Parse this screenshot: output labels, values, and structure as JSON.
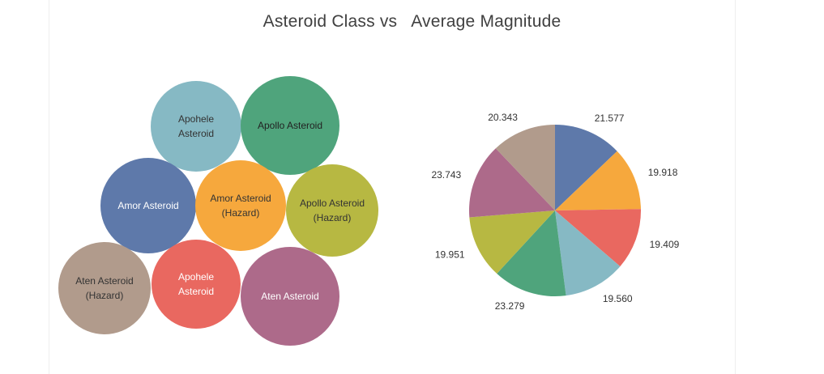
{
  "title": "Asteroid Class vs   Average Magnitude",
  "chart_data": [
    {
      "type": "bubble",
      "items": [
        {
          "label_lines": [
            "Apohele",
            "Asteroid"
          ],
          "color": "#86b9c4",
          "text_color": "#333333"
        },
        {
          "label_lines": [
            "Apollo Asteroid"
          ],
          "color": "#4fa47c",
          "text_color": "#222222"
        },
        {
          "label_lines": [
            "Amor Asteroid"
          ],
          "color": "#5e79aa",
          "text_color": "#ffffff"
        },
        {
          "label_lines": [
            "Amor Asteroid",
            "(Hazard)"
          ],
          "color": "#f6a83d",
          "text_color": "#333333"
        },
        {
          "label_lines": [
            "Apollo Asteroid",
            "(Hazard)"
          ],
          "color": "#b7b842",
          "text_color": "#333333"
        },
        {
          "label_lines": [
            "Aten Asteroid",
            "(Hazard)"
          ],
          "color": "#b19b8c",
          "text_color": "#333333"
        },
        {
          "label_lines": [
            "Apohele",
            "Asteroid"
          ],
          "color": "#e96860",
          "text_color": "#ffffff"
        },
        {
          "label_lines": [
            "Aten Asteroid"
          ],
          "color": "#ad6a8a",
          "text_color": "#ffffff"
        }
      ]
    },
    {
      "type": "pie",
      "slices": [
        {
          "value": 21.577,
          "color": "#5e79aa"
        },
        {
          "value": 19.918,
          "color": "#f6a83d"
        },
        {
          "value": 19.409,
          "color": "#e96860"
        },
        {
          "value": 19.56,
          "color": "#86b9c4"
        },
        {
          "value": 23.279,
          "color": "#4fa47c"
        },
        {
          "value": 19.951,
          "color": "#b7b842"
        },
        {
          "value": 23.743,
          "color": "#ad6a8a"
        },
        {
          "value": 20.343,
          "color": "#b19b8c"
        }
      ]
    }
  ]
}
